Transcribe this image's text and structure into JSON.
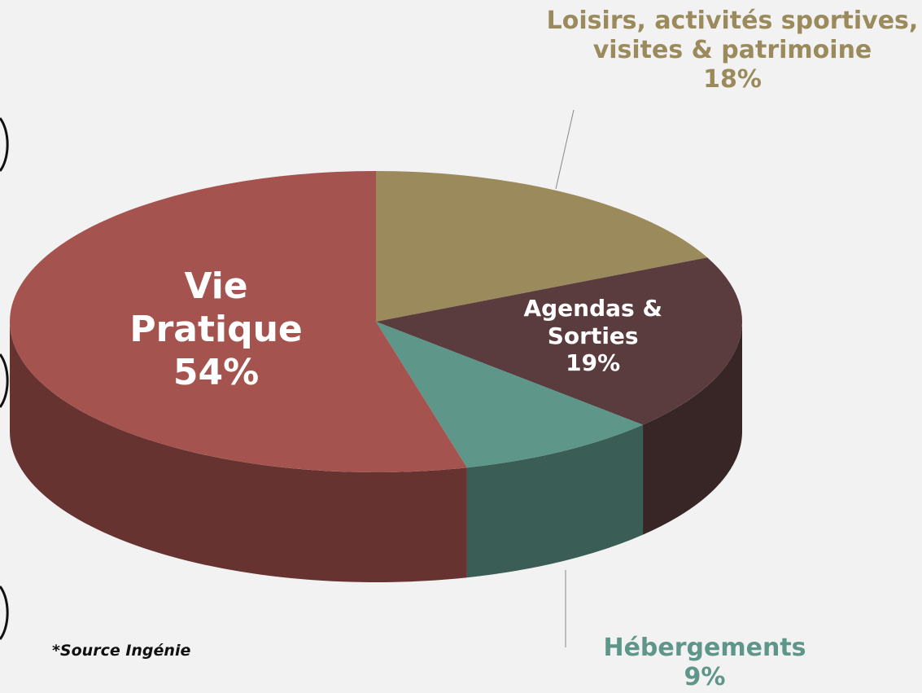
{
  "chart_data": {
    "type": "pie",
    "categories": [
      "Loisirs, activités sportives, visites & patrimoine",
      "Agendas & Sorties",
      "Hébergements",
      "Vie Pratique"
    ],
    "values": [
      18,
      19,
      9,
      54
    ],
    "value_labels": [
      "18%",
      "19%",
      "9%",
      "54%"
    ],
    "colors": [
      "#9b8a5c",
      "#5a3b3e",
      "#5e968a",
      "#a5534f"
    ],
    "source": "*Source Ingénie"
  }
}
